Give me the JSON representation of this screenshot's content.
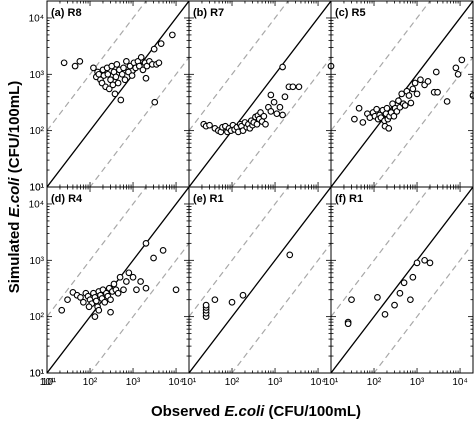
{
  "figure": {
    "xlabel_prefix": "Observed ",
    "xlabel_italic": "E.coli",
    "xlabel_suffix": " (CFU/100mL)",
    "ylabel_prefix": "Simulated ",
    "ylabel_italic": "E.coli",
    "ylabel_suffix": " (CFU/100mL)"
  },
  "chart_data": [
    {
      "type": "scatter",
      "title": "(a) R8",
      "xscale": "log",
      "yscale": "log",
      "xlim": [
        10,
        20000
      ],
      "ylim": [
        10,
        20000
      ],
      "reference_lines": [
        "1:1 solid",
        "1:10 dashed",
        "10:1 dashed"
      ],
      "points": [
        [
          25,
          1600
        ],
        [
          45,
          1400
        ],
        [
          58,
          1700
        ],
        [
          120,
          1300
        ],
        [
          140,
          900
        ],
        [
          150,
          1100
        ],
        [
          160,
          1000
        ],
        [
          175,
          800
        ],
        [
          190,
          700
        ],
        [
          200,
          1200
        ],
        [
          210,
          950
        ],
        [
          230,
          600
        ],
        [
          250,
          1300
        ],
        [
          260,
          1000
        ],
        [
          280,
          550
        ],
        [
          300,
          800
        ],
        [
          320,
          1400
        ],
        [
          340,
          650
        ],
        [
          360,
          1100
        ],
        [
          380,
          450
        ],
        [
          400,
          900
        ],
        [
          420,
          1500
        ],
        [
          450,
          700
        ],
        [
          480,
          1200
        ],
        [
          520,
          350
        ],
        [
          560,
          1000
        ],
        [
          600,
          1300
        ],
        [
          650,
          800
        ],
        [
          700,
          1700
        ],
        [
          780,
          1100
        ],
        [
          850,
          1400
        ],
        [
          950,
          950
        ],
        [
          1050,
          1600
        ],
        [
          1150,
          1300
        ],
        [
          1300,
          1700
        ],
        [
          1400,
          1400
        ],
        [
          1550,
          2000
        ],
        [
          1700,
          1200
        ],
        [
          1900,
          1600
        ],
        [
          2100,
          1400
        ],
        [
          2400,
          1700
        ],
        [
          2800,
          1500
        ],
        [
          3100,
          2800
        ],
        [
          3500,
          1500
        ],
        [
          4000,
          1600
        ],
        [
          3200,
          320
        ],
        [
          4500,
          3500
        ],
        [
          8200,
          5000
        ],
        [
          2000,
          850
        ]
      ]
    },
    {
      "type": "scatter",
      "title": "(b) R7",
      "xscale": "log",
      "yscale": "log",
      "xlim": [
        10,
        20000
      ],
      "ylim": [
        10,
        20000
      ],
      "reference_lines": [
        "1:1 solid",
        "1:10 dashed",
        "10:1 dashed"
      ],
      "points": [
        [
          22,
          130
        ],
        [
          25,
          120
        ],
        [
          30,
          125
        ],
        [
          40,
          110
        ],
        [
          48,
          100
        ],
        [
          55,
          95
        ],
        [
          60,
          115
        ],
        [
          70,
          120
        ],
        [
          78,
          95
        ],
        [
          85,
          110
        ],
        [
          95,
          100
        ],
        [
          105,
          125
        ],
        [
          115,
          105
        ],
        [
          130,
          115
        ],
        [
          140,
          95
        ],
        [
          155,
          130
        ],
        [
          165,
          120
        ],
        [
          180,
          100
        ],
        [
          200,
          140
        ],
        [
          220,
          115
        ],
        [
          240,
          130
        ],
        [
          260,
          110
        ],
        [
          280,
          150
        ],
        [
          300,
          125
        ],
        [
          320,
          140
        ],
        [
          350,
          175
        ],
        [
          380,
          130
        ],
        [
          400,
          185
        ],
        [
          430,
          160
        ],
        [
          460,
          210
        ],
        [
          500,
          145
        ],
        [
          550,
          180
        ],
        [
          600,
          130
        ],
        [
          700,
          260
        ],
        [
          800,
          220
        ],
        [
          950,
          320
        ],
        [
          1100,
          200
        ],
        [
          1300,
          260
        ],
        [
          1500,
          190
        ],
        [
          1700,
          400
        ],
        [
          2100,
          600
        ],
        [
          2600,
          600
        ],
        [
          3600,
          600
        ],
        [
          800,
          430
        ],
        [
          1500,
          1350
        ],
        [
          20000,
          1400
        ]
      ]
    },
    {
      "type": "scatter",
      "title": "(c) R5",
      "xscale": "log",
      "yscale": "log",
      "xlim": [
        10,
        20000
      ],
      "ylim": [
        10,
        20000
      ],
      "reference_lines": [
        "1:1 solid",
        "1:10 dashed",
        "10:1 dashed"
      ],
      "points": [
        [
          35,
          160
        ],
        [
          45,
          250
        ],
        [
          55,
          140
        ],
        [
          70,
          200
        ],
        [
          80,
          170
        ],
        [
          95,
          210
        ],
        [
          105,
          180
        ],
        [
          115,
          240
        ],
        [
          125,
          160
        ],
        [
          135,
          190
        ],
        [
          145,
          170
        ],
        [
          160,
          230
        ],
        [
          175,
          150
        ],
        [
          190,
          200
        ],
        [
          200,
          250
        ],
        [
          210,
          160
        ],
        [
          230,
          180
        ],
        [
          250,
          210
        ],
        [
          270,
          300
        ],
        [
          290,
          180
        ],
        [
          310,
          250
        ],
        [
          340,
          220
        ],
        [
          370,
          340
        ],
        [
          400,
          260
        ],
        [
          440,
          450
        ],
        [
          480,
          300
        ],
        [
          530,
          280
        ],
        [
          580,
          500
        ],
        [
          650,
          420
        ],
        [
          720,
          310
        ],
        [
          800,
          550
        ],
        [
          900,
          700
        ],
        [
          1000,
          450
        ],
        [
          1200,
          800
        ],
        [
          1500,
          650
        ],
        [
          1800,
          750
        ],
        [
          2500,
          480
        ],
        [
          3000,
          480
        ],
        [
          5000,
          330
        ],
        [
          8000,
          1300
        ],
        [
          11000,
          1800
        ],
        [
          20000,
          420
        ],
        [
          2800,
          1100
        ],
        [
          9000,
          1000
        ],
        [
          180,
          120
        ],
        [
          220,
          110
        ]
      ]
    },
    {
      "type": "scatter",
      "title": "(d) R4",
      "xscale": "log",
      "yscale": "log",
      "xlim": [
        10,
        20000
      ],
      "ylim": [
        10,
        20000
      ],
      "reference_lines": [
        "1:1 solid",
        "1:10 dashed",
        "10:1 dashed"
      ],
      "points": [
        [
          22,
          130
        ],
        [
          30,
          200
        ],
        [
          40,
          270
        ],
        [
          50,
          240
        ],
        [
          60,
          220
        ],
        [
          70,
          180
        ],
        [
          80,
          260
        ],
        [
          90,
          230
        ],
        [
          100,
          200
        ],
        [
          110,
          170
        ],
        [
          120,
          260
        ],
        [
          130,
          220
        ],
        [
          140,
          190
        ],
        [
          150,
          150
        ],
        [
          160,
          280
        ],
        [
          175,
          240
        ],
        [
          190,
          210
        ],
        [
          200,
          300
        ],
        [
          220,
          180
        ],
        [
          240,
          260
        ],
        [
          260,
          230
        ],
        [
          280,
          320
        ],
        [
          300,
          200
        ],
        [
          330,
          280
        ],
        [
          360,
          380
        ],
        [
          400,
          300
        ],
        [
          450,
          260
        ],
        [
          500,
          500
        ],
        [
          600,
          300
        ],
        [
          700,
          420
        ],
        [
          800,
          600
        ],
        [
          1000,
          500
        ],
        [
          1200,
          300
        ],
        [
          1500,
          420
        ],
        [
          2000,
          320
        ],
        [
          3000,
          1100
        ],
        [
          5000,
          1500
        ],
        [
          10000,
          300
        ],
        [
          2000,
          2000
        ],
        [
          300,
          120
        ],
        [
          130,
          100
        ],
        [
          160,
          130
        ],
        [
          95,
          150
        ]
      ]
    },
    {
      "type": "scatter",
      "title": "(e) R1",
      "xscale": "log",
      "yscale": "log",
      "xlim": [
        10,
        20000
      ],
      "ylim": [
        10,
        20000
      ],
      "reference_lines": [
        "1:1 solid",
        "1:10 dashed",
        "10:1 dashed"
      ],
      "points": [
        [
          25,
          100
        ],
        [
          25,
          115
        ],
        [
          25,
          130
        ],
        [
          25,
          145
        ],
        [
          25,
          160
        ],
        [
          40,
          200
        ],
        [
          100,
          180
        ],
        [
          180,
          240
        ],
        [
          2200,
          1250
        ]
      ]
    },
    {
      "type": "scatter",
      "title": "(f) R1",
      "xscale": "log",
      "yscale": "log",
      "xlim": [
        10,
        20000
      ],
      "ylim": [
        10,
        20000
      ],
      "reference_lines": [
        "1:1 solid",
        "1:10 dashed",
        "10:1 dashed"
      ],
      "points": [
        [
          25,
          80
        ],
        [
          25,
          75
        ],
        [
          30,
          200
        ],
        [
          120,
          220
        ],
        [
          180,
          110
        ],
        [
          300,
          160
        ],
        [
          400,
          260
        ],
        [
          500,
          400
        ],
        [
          700,
          200
        ],
        [
          800,
          500
        ],
        [
          1000,
          900
        ],
        [
          1500,
          1000
        ],
        [
          2000,
          900
        ]
      ]
    }
  ]
}
